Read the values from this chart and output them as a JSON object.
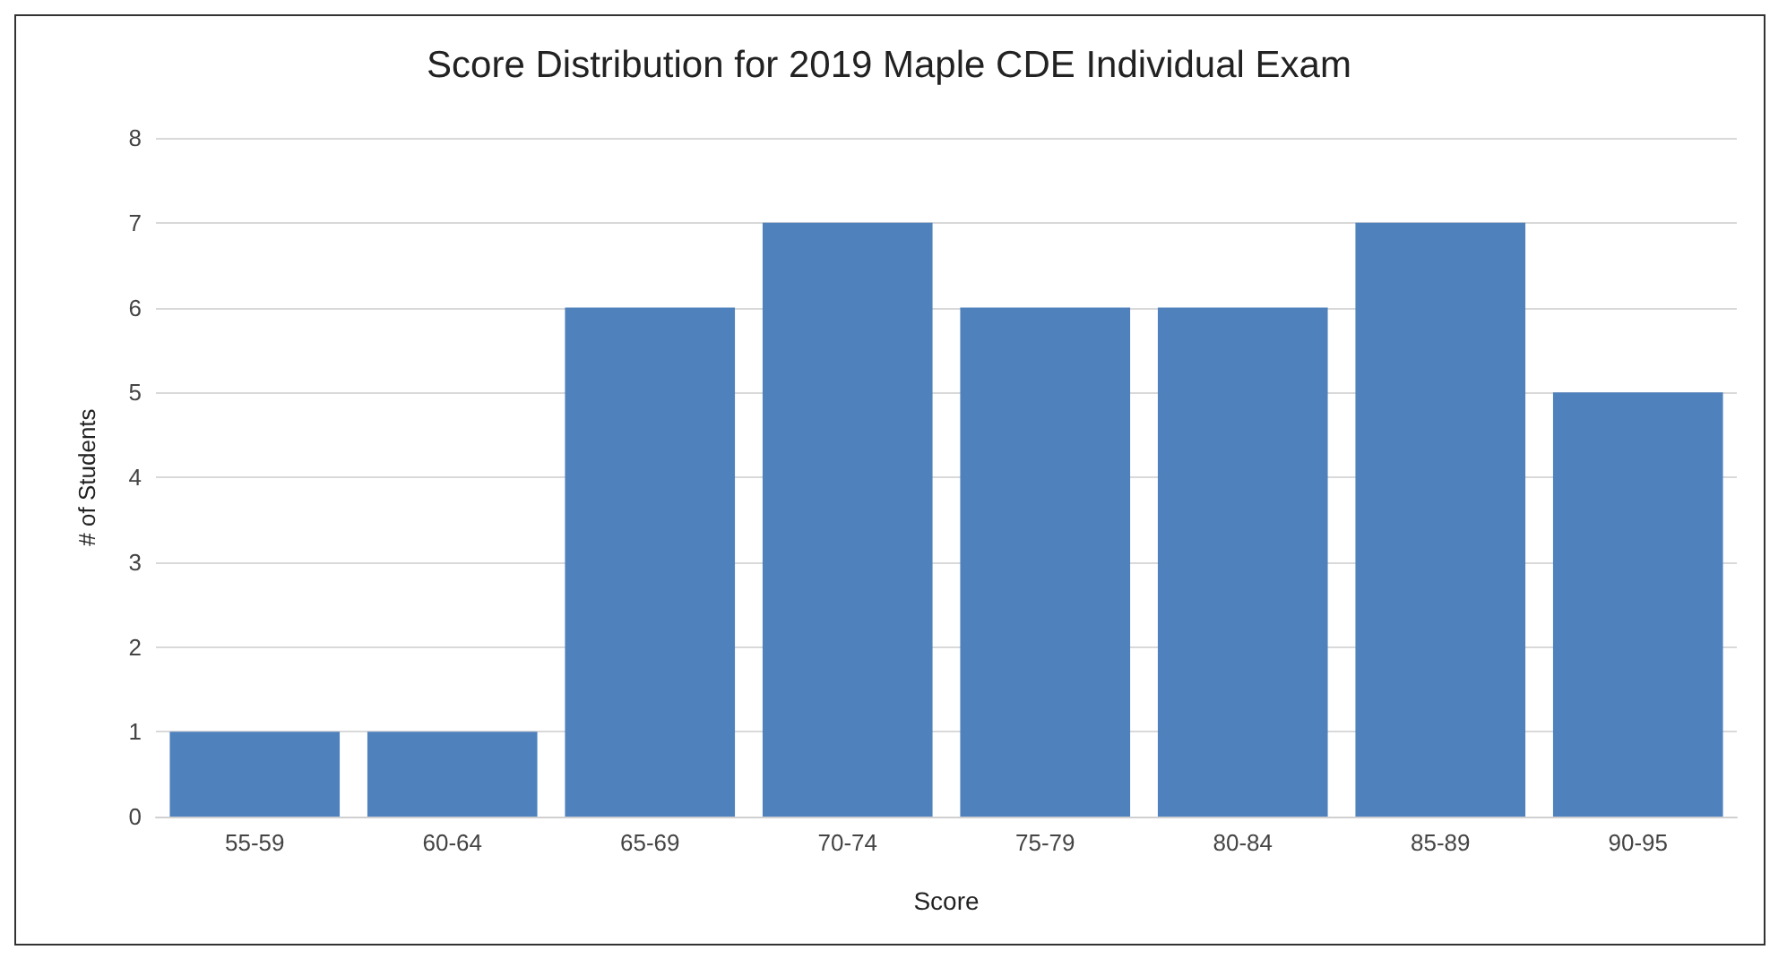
{
  "chart_data": {
    "type": "bar",
    "title": "Score Distribution for 2019 Maple CDE Individual Exam",
    "xlabel": "Score",
    "ylabel": "# of Students",
    "categories": [
      "55-59",
      "60-64",
      "65-69",
      "70-74",
      "75-79",
      "80-84",
      "85-89",
      "90-95"
    ],
    "values": [
      1,
      1,
      6,
      7,
      6,
      6,
      7,
      5
    ],
    "color": "#4f81bd",
    "ylim": [
      0,
      8
    ],
    "yticks": [
      0,
      1,
      2,
      3,
      4,
      5,
      6,
      7,
      8
    ],
    "grid": "y"
  }
}
